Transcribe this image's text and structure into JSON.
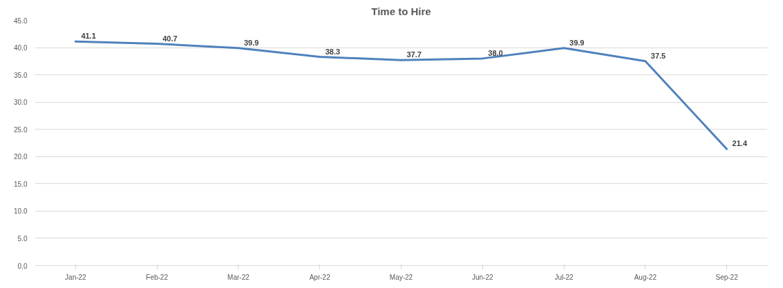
{
  "chart_data": {
    "type": "line",
    "title": "Time to Hire",
    "categories": [
      "Jan-22",
      "Feb-22",
      "Mar-22",
      "Apr-22",
      "May-22",
      "Jun-22",
      "Jul-22",
      "Aug-22",
      "Sep-22"
    ],
    "series": [
      {
        "color": "#4f81bd",
        "values": [
          41.1,
          40.7,
          39.9,
          38.3,
          37.7,
          38.0,
          39.9,
          37.5,
          21.4
        ],
        "value_labels": [
          "41.1",
          "40.7",
          "39.9",
          "38.3",
          "37.7",
          "38.0",
          "39.9",
          "37.5",
          "21.4"
        ]
      }
    ],
    "ylim": [
      0,
      45
    ],
    "yticks": [
      {
        "value": 0,
        "label": "0.0"
      },
      {
        "value": 5,
        "label": "5.0"
      },
      {
        "value": 10,
        "label": "10.0"
      },
      {
        "value": 15,
        "label": "15.0"
      },
      {
        "value": 20,
        "label": "20.0"
      },
      {
        "value": 25,
        "label": "25.0"
      },
      {
        "value": 30,
        "label": "30.0"
      },
      {
        "value": 35,
        "label": "35.0"
      },
      {
        "value": 40,
        "label": "40.0"
      },
      {
        "value": 45,
        "label": "45.0"
      }
    ],
    "grid": "y",
    "marker": "none",
    "line_style": "solid"
  }
}
